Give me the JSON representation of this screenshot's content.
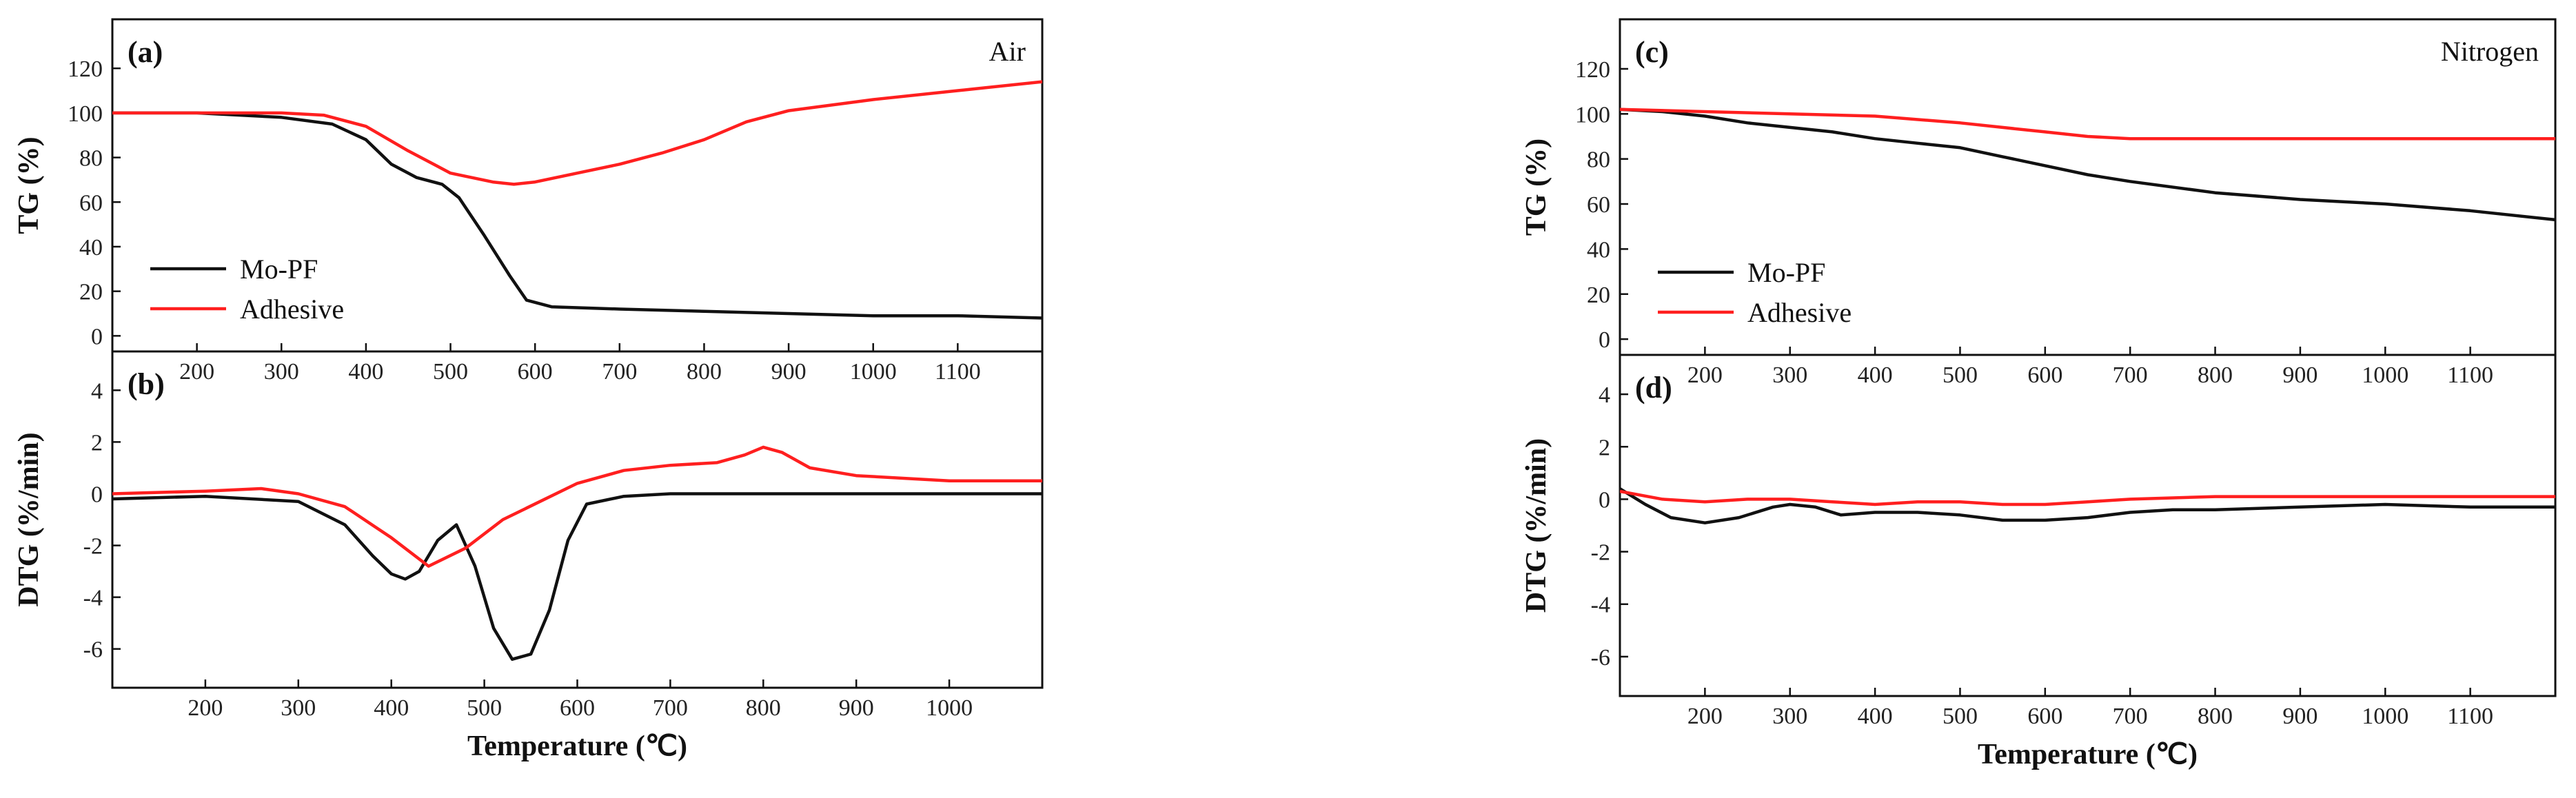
{
  "colors": {
    "mo_pf": "#111111",
    "adhesive": "#ff1f1f",
    "axis": "#111111"
  },
  "chart_data": [
    {
      "id": "a",
      "type": "line",
      "panel_label": "(a)",
      "atmosphere": "Air",
      "ylabel": "TG (%)",
      "xlabel": "",
      "xlim": [
        100,
        1200
      ],
      "ylim": [
        -7,
        142
      ],
      "yticks": [
        0,
        20,
        40,
        60,
        80,
        100,
        120
      ],
      "xticks": [
        200,
        300,
        400,
        500,
        600,
        700,
        800,
        900,
        1000,
        1100
      ],
      "legend": [
        "Mo-PF",
        "Adhesive"
      ],
      "legend_position": "bottom-left",
      "series": [
        {
          "name": "Mo-PF",
          "x": [
            100,
            200,
            300,
            360,
            400,
            430,
            460,
            490,
            510,
            540,
            570,
            590,
            620,
            700,
            800,
            900,
            1000,
            1100,
            1200
          ],
          "y": [
            100,
            100,
            98,
            95,
            88,
            77,
            71,
            68,
            62,
            45,
            27,
            16,
            13,
            12,
            11,
            10,
            9,
            9,
            8
          ]
        },
        {
          "name": "Adhesive",
          "x": [
            100,
            200,
            300,
            350,
            400,
            450,
            500,
            550,
            575,
            600,
            650,
            700,
            750,
            800,
            850,
            900,
            1000,
            1100,
            1200
          ],
          "y": [
            100,
            100,
            100,
            99,
            94,
            83,
            73,
            69,
            68,
            69,
            73,
            77,
            82,
            88,
            96,
            101,
            106,
            110,
            114
          ]
        }
      ]
    },
    {
      "id": "b",
      "type": "line",
      "panel_label": "(b)",
      "atmosphere": "",
      "ylabel": "DTG (%/min)",
      "xlabel": "Temperature (℃)",
      "xlim": [
        100,
        1100
      ],
      "ylim": [
        -7.5,
        5.5
      ],
      "yticks": [
        -6,
        -4,
        -2,
        0,
        2,
        4
      ],
      "xticks": [
        200,
        300,
        400,
        500,
        600,
        700,
        800,
        900,
        1000
      ],
      "legend": [],
      "legend_position": "",
      "series": [
        {
          "name": "Mo-PF",
          "x": [
            100,
            200,
            300,
            350,
            380,
            400,
            415,
            430,
            450,
            470,
            490,
            510,
            530,
            550,
            570,
            590,
            610,
            650,
            700,
            750,
            800,
            900,
            1000,
            1100
          ],
          "y": [
            -0.2,
            -0.1,
            -0.3,
            -1.2,
            -2.4,
            -3.1,
            -3.3,
            -3.0,
            -1.8,
            -1.2,
            -2.8,
            -5.2,
            -6.4,
            -6.2,
            -4.5,
            -1.8,
            -0.4,
            -0.1,
            0,
            0,
            0,
            0,
            0,
            0
          ]
        },
        {
          "name": "Adhesive",
          "x": [
            100,
            200,
            260,
            300,
            350,
            400,
            440,
            480,
            520,
            560,
            600,
            650,
            700,
            750,
            780,
            800,
            820,
            850,
            900,
            1000,
            1100
          ],
          "y": [
            0,
            0.1,
            0.2,
            0,
            -0.5,
            -1.7,
            -2.8,
            -2.1,
            -1.0,
            -0.3,
            0.4,
            0.9,
            1.1,
            1.2,
            1.5,
            1.8,
            1.6,
            1.0,
            0.7,
            0.5,
            0.5
          ]
        }
      ]
    },
    {
      "id": "c",
      "type": "line",
      "panel_label": "(c)",
      "atmosphere": "Nitrogen",
      "ylabel": "TG (%)",
      "xlabel": "",
      "xlim": [
        100,
        1200
      ],
      "ylim": [
        -7,
        142
      ],
      "yticks": [
        0,
        20,
        40,
        60,
        80,
        100,
        120
      ],
      "xticks": [
        200,
        300,
        400,
        500,
        600,
        700,
        800,
        900,
        1000,
        1100
      ],
      "legend": [
        "Mo-PF",
        "Adhesive"
      ],
      "legend_position": "bottom-left",
      "series": [
        {
          "name": "Mo-PF",
          "x": [
            100,
            150,
            200,
            250,
            300,
            350,
            400,
            450,
            500,
            550,
            600,
            650,
            700,
            800,
            900,
            1000,
            1100,
            1200
          ],
          "y": [
            102,
            101,
            99,
            96,
            94,
            92,
            89,
            87,
            85,
            81,
            77,
            73,
            70,
            65,
            62,
            60,
            57,
            53
          ]
        },
        {
          "name": "Adhesive",
          "x": [
            100,
            200,
            300,
            400,
            500,
            550,
            600,
            650,
            700,
            800,
            900,
            1000,
            1100,
            1200
          ],
          "y": [
            102,
            101,
            100,
            99,
            96,
            94,
            92,
            90,
            89,
            89,
            89,
            89,
            89,
            89
          ]
        }
      ]
    },
    {
      "id": "d",
      "type": "line",
      "panel_label": "(d)",
      "atmosphere": "",
      "ylabel": "DTG (%/min)",
      "xlabel": "Temperature (℃)",
      "xlim": [
        100,
        1200
      ],
      "ylim": [
        -7.5,
        5.5
      ],
      "yticks": [
        -6,
        -4,
        -2,
        0,
        2,
        4
      ],
      "xticks": [
        200,
        300,
        400,
        500,
        600,
        700,
        800,
        900,
        1000,
        1100
      ],
      "legend": [],
      "legend_position": "",
      "series": [
        {
          "name": "Mo-PF",
          "x": [
            100,
            130,
            160,
            200,
            240,
            280,
            300,
            330,
            360,
            400,
            450,
            500,
            550,
            600,
            650,
            700,
            750,
            800,
            900,
            1000,
            1100,
            1200
          ],
          "y": [
            0.4,
            -0.2,
            -0.7,
            -0.9,
            -0.7,
            -0.3,
            -0.2,
            -0.3,
            -0.6,
            -0.5,
            -0.5,
            -0.6,
            -0.8,
            -0.8,
            -0.7,
            -0.5,
            -0.4,
            -0.4,
            -0.3,
            -0.2,
            -0.3,
            -0.3
          ]
        },
        {
          "name": "Adhesive",
          "x": [
            100,
            150,
            200,
            250,
            300,
            350,
            400,
            450,
            500,
            550,
            600,
            650,
            700,
            800,
            900,
            1000,
            1100,
            1200
          ],
          "y": [
            0.3,
            0,
            -0.1,
            0,
            0,
            -0.1,
            -0.2,
            -0.1,
            -0.1,
            -0.2,
            -0.2,
            -0.1,
            0,
            0.1,
            0.1,
            0.1,
            0.1,
            0.1
          ]
        }
      ]
    }
  ]
}
